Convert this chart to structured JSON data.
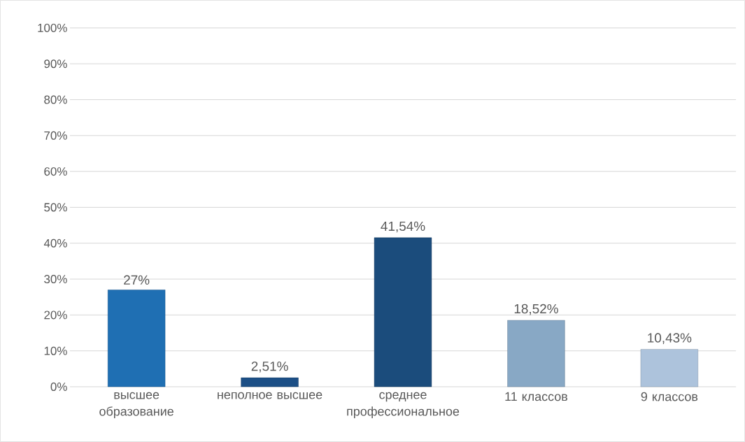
{
  "chart_data": {
    "type": "bar",
    "categories": [
      "высшее образование",
      "неполное высшее",
      "среднее профессиональное",
      "11 классов",
      "9 классов"
    ],
    "values": [
      27,
      2.51,
      41.54,
      18.52,
      10.43
    ],
    "value_labels": [
      "27%",
      "2,51%",
      "41,54%",
      "18,52%",
      "10,43%"
    ],
    "colors": [
      "#1f6fb3",
      "#1c4f86",
      "#1b4c7c",
      "#88a8c5",
      "#adc3dc"
    ],
    "ylim": [
      0,
      100
    ],
    "yticks": [
      {
        "value": 0,
        "label": "0%"
      },
      {
        "value": 10,
        "label": "10%"
      },
      {
        "value": 20,
        "label": "20%"
      },
      {
        "value": 30,
        "label": "30%"
      },
      {
        "value": 40,
        "label": "40%"
      },
      {
        "value": 50,
        "label": "50%"
      },
      {
        "value": 60,
        "label": "60%"
      },
      {
        "value": 70,
        "label": "70%"
      },
      {
        "value": 80,
        "label": "80%"
      },
      {
        "value": 90,
        "label": "90%"
      },
      {
        "value": 100,
        "label": "100%"
      }
    ],
    "grid": "y"
  }
}
